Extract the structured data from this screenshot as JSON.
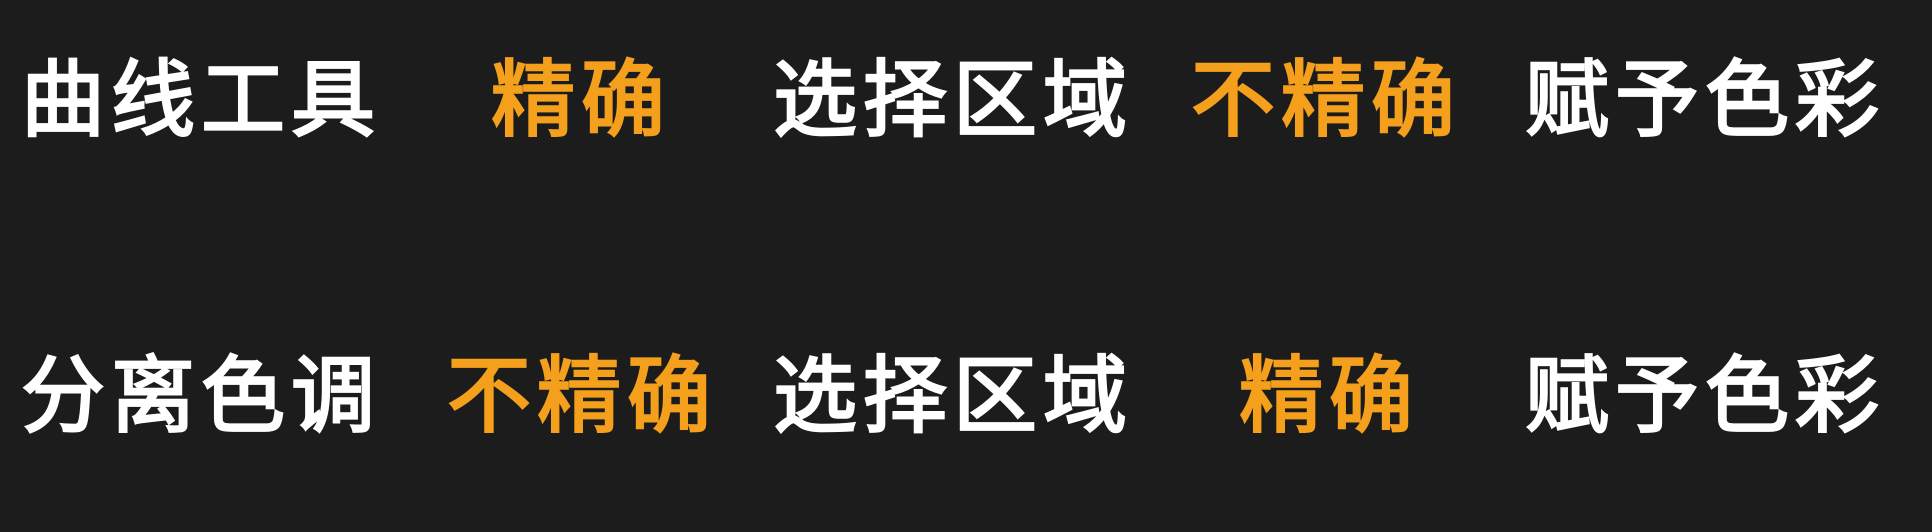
{
  "colors": {
    "background": "#1c1c1c",
    "primary_text": "#ffffff",
    "accent_text": "#f5a01d"
  },
  "rows": [
    {
      "terms": [
        {
          "text": "曲线工具",
          "color": "white"
        },
        {
          "text": "精确",
          "color": "orange"
        },
        {
          "text": "选择区域",
          "color": "white"
        },
        {
          "text": "不精确",
          "color": "orange"
        },
        {
          "text": "赋予色彩",
          "color": "white"
        }
      ]
    },
    {
      "terms": [
        {
          "text": "分离色调",
          "color": "white"
        },
        {
          "text": "不精确",
          "color": "orange"
        },
        {
          "text": "选择区域",
          "color": "white"
        },
        {
          "text": "精确",
          "color": "orange"
        },
        {
          "text": "赋予色彩",
          "color": "white"
        }
      ]
    }
  ]
}
